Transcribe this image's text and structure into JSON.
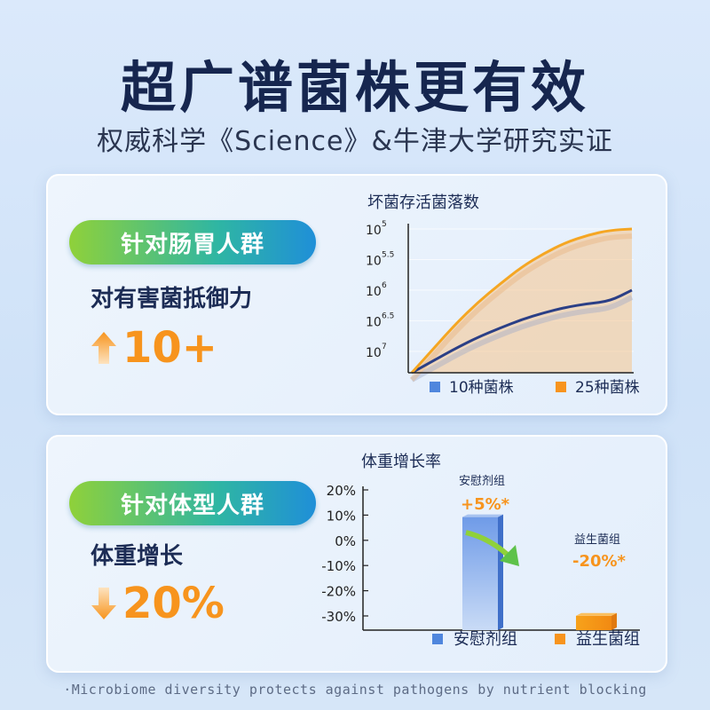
{
  "header": {
    "title": "超广谱菌株更有效",
    "subtitle": "权威科学《Science》&牛津大学研究实证"
  },
  "panel1": {
    "pill": "针对肠胃人群",
    "label": "对有害菌抵御力",
    "highlight": "10+"
  },
  "panel2": {
    "pill": "针对体型人群",
    "label": "体重增长",
    "highlight": "20%"
  },
  "footer": "·Microbiome diversity protects against pathogens by nutrient blocking",
  "colors": {
    "blue_series": "#2b3f86",
    "orange_series": "#f5a623",
    "highlight": "#f7941d",
    "legend_blue": "#4f86dd",
    "legend_orange": "#f7941d"
  },
  "chart_data": [
    {
      "type": "line",
      "title": "坏菌存活菌落数",
      "ytick_labels": [
        {
          "base": "10",
          "exp": "5"
        },
        {
          "base": "10",
          "exp": "5.5"
        },
        {
          "base": "10",
          "exp": "6"
        },
        {
          "base": "10",
          "exp": "6.5"
        },
        {
          "base": "10",
          "exp": "7"
        }
      ],
      "y_reversed": true,
      "x": [
        0,
        0.1,
        0.2,
        0.3,
        0.4,
        0.5,
        0.6,
        0.7,
        0.8,
        0.9,
        1.0
      ],
      "series": [
        {
          "name": "10种菌株",
          "color": "#2b3f86",
          "values": [
            7.35,
            7.15,
            6.95,
            6.77,
            6.62,
            6.48,
            6.37,
            6.28,
            6.22,
            6.18,
            6.0
          ]
        },
        {
          "name": "25种菌株",
          "color": "#f5a623",
          "values": [
            7.35,
            6.95,
            6.55,
            6.2,
            5.9,
            5.62,
            5.4,
            5.22,
            5.1,
            5.02,
            5.0
          ]
        }
      ],
      "legend": [
        "10种菌株",
        "25种菌株"
      ]
    },
    {
      "type": "bar",
      "title": "体重增长率",
      "categories": [
        "安慰剂组",
        "益生菌组"
      ],
      "values": [
        5,
        -20
      ],
      "value_labels": [
        "+5%*",
        "-20%*"
      ],
      "bar_top_labels": [
        "安慰剂组",
        "益生菌组"
      ],
      "ytick_labels": [
        "20%",
        "10%",
        "0%",
        "-10%",
        "-20%",
        "-30%"
      ],
      "ylim": [
        -35,
        25
      ],
      "legend": [
        "安慰剂组",
        "益生菌组"
      ]
    }
  ]
}
